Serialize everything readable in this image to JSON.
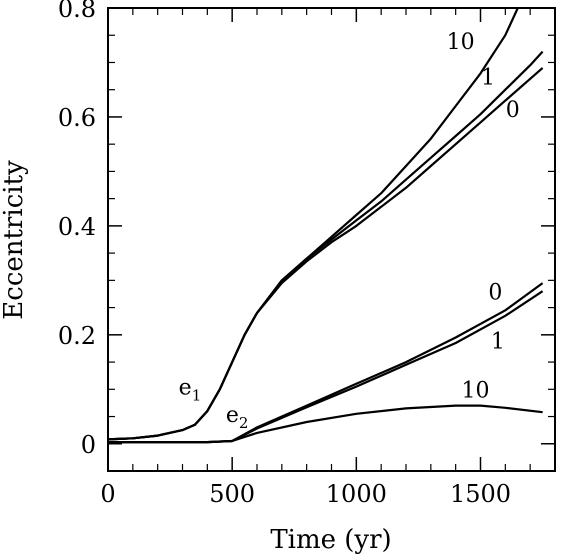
{
  "chart_data": {
    "type": "line",
    "title": "",
    "xlabel": "Time (yr)",
    "ylabel": "Eccentricity",
    "xlim": [
      0,
      1800
    ],
    "ylim": [
      -0.05,
      0.8
    ],
    "xticks": [
      0,
      500,
      1000,
      1500
    ],
    "yticks": [
      0,
      0.2,
      0.4,
      0.6,
      0.8
    ],
    "xtick_labels": [
      "0",
      "500",
      "1000",
      "1500"
    ],
    "ytick_labels": [
      "0",
      "0.2",
      "0.4",
      "0.6",
      "0.8"
    ],
    "grid": false,
    "legend": "none",
    "line_color": "#000000",
    "series": [
      {
        "label": "10",
        "group": "e1",
        "x": [
          0,
          100,
          200,
          300,
          350,
          400,
          450,
          500,
          550,
          600,
          700,
          800,
          900,
          1000,
          1100,
          1200,
          1300,
          1400,
          1500,
          1600,
          1650
        ],
        "y": [
          0.008,
          0.01,
          0.015,
          0.025,
          0.035,
          0.06,
          0.1,
          0.15,
          0.2,
          0.24,
          0.3,
          0.34,
          0.38,
          0.42,
          0.46,
          0.51,
          0.56,
          0.62,
          0.68,
          0.75,
          0.8
        ]
      },
      {
        "label": "1",
        "group": "e1",
        "x": [
          0,
          100,
          200,
          300,
          350,
          400,
          450,
          500,
          550,
          600,
          700,
          800,
          900,
          1000,
          1100,
          1200,
          1300,
          1400,
          1500,
          1600,
          1700,
          1750
        ],
        "y": [
          0.008,
          0.01,
          0.015,
          0.025,
          0.035,
          0.06,
          0.1,
          0.15,
          0.2,
          0.24,
          0.3,
          0.34,
          0.375,
          0.41,
          0.445,
          0.485,
          0.525,
          0.565,
          0.605,
          0.65,
          0.695,
          0.72
        ]
      },
      {
        "label": "0",
        "group": "e1",
        "x": [
          0,
          100,
          200,
          300,
          350,
          400,
          450,
          500,
          550,
          600,
          700,
          800,
          900,
          1000,
          1100,
          1200,
          1300,
          1400,
          1500,
          1600,
          1700,
          1750
        ],
        "y": [
          0.008,
          0.01,
          0.015,
          0.025,
          0.035,
          0.06,
          0.1,
          0.15,
          0.2,
          0.24,
          0.295,
          0.335,
          0.37,
          0.4,
          0.435,
          0.47,
          0.51,
          0.55,
          0.59,
          0.63,
          0.67,
          0.69
        ]
      },
      {
        "label": "0",
        "group": "e2",
        "x": [
          0,
          200,
          400,
          500,
          600,
          800,
          1000,
          1200,
          1400,
          1600,
          1750
        ],
        "y": [
          0.003,
          0.003,
          0.003,
          0.005,
          0.03,
          0.07,
          0.11,
          0.15,
          0.195,
          0.245,
          0.295
        ]
      },
      {
        "label": "1",
        "group": "e2",
        "x": [
          0,
          200,
          400,
          500,
          600,
          800,
          1000,
          1200,
          1400,
          1600,
          1750
        ],
        "y": [
          0.003,
          0.003,
          0.003,
          0.005,
          0.028,
          0.067,
          0.105,
          0.145,
          0.185,
          0.235,
          0.28
        ]
      },
      {
        "label": "10",
        "group": "e2",
        "x": [
          0,
          200,
          400,
          500,
          600,
          800,
          1000,
          1200,
          1400,
          1500,
          1600,
          1750
        ],
        "y": [
          0.003,
          0.003,
          0.003,
          0.005,
          0.02,
          0.04,
          0.055,
          0.065,
          0.07,
          0.07,
          0.066,
          0.058
        ]
      }
    ],
    "annotations": [
      {
        "text": "10",
        "x": 1420,
        "y": 0.725
      },
      {
        "text": "1",
        "x": 1530,
        "y": 0.66
      },
      {
        "text": "0",
        "x": 1630,
        "y": 0.6
      },
      {
        "text": "0",
        "x": 1560,
        "y": 0.265
      },
      {
        "text": "1",
        "x": 1570,
        "y": 0.175
      },
      {
        "text": "10",
        "x": 1480,
        "y": 0.085
      }
    ],
    "group_labels": [
      {
        "main": "e",
        "sub": "1",
        "x": 330,
        "y": 0.09
      },
      {
        "main": "e",
        "sub": "2",
        "x": 520,
        "y": 0.04
      }
    ]
  }
}
